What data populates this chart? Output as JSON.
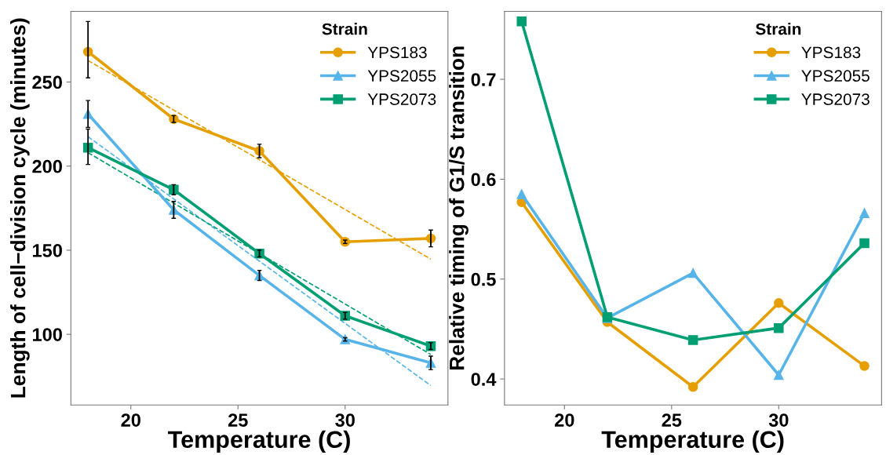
{
  "chart_data": [
    {
      "type": "line",
      "xlabel": "Temperature (C)",
      "ylabel": "Length of cell−division cycle (minutes)",
      "legend_title": "Strain",
      "legend": "top right",
      "grid": false,
      "x": [
        18,
        22,
        26,
        30,
        34
      ],
      "xlim": [
        17.2,
        34.8
      ],
      "xticks": [
        20,
        25,
        30
      ],
      "ylim": [
        58,
        292
      ],
      "yticks": [
        100,
        150,
        200,
        250
      ],
      "series": [
        {
          "name": "YPS183",
          "color": "#e69f00",
          "marker": "circle",
          "values": [
            268,
            228,
            209,
            155,
            157
          ],
          "errors": [
            [
              252.5,
              286
            ],
            2,
            4,
            1,
            5
          ]
        },
        {
          "name": "YPS2055",
          "color": "#56b4e9",
          "marker": "triangle",
          "values": [
            231,
            174,
            135,
            97,
            83
          ],
          "errors": [
            [
              223,
              239
            ],
            5,
            3,
            1,
            4
          ]
        },
        {
          "name": "YPS2073",
          "color": "#009e73",
          "marker": "square",
          "values": [
            211,
            186,
            148,
            111,
            93
          ],
          "errors": [
            [
              201,
              222
            ],
            3,
            2,
            2,
            2
          ]
        },
        {
          "type": "line",
          "color": "#e69f00",
          "line_style": "dashed",
          "marker": "none",
          "values": [
            262.8,
            233.3,
            203.8,
            174.2,
            144.7
          ]
        },
        {
          "type": "line",
          "color": "#56b4e9",
          "line_style": "dashed",
          "marker": "none",
          "values": [
            217.5,
            180.5,
            143.5,
            106.5,
            69.5
          ]
        },
        {
          "type": "line",
          "color": "#009e73",
          "line_style": "dashed",
          "marker": "none",
          "values": [
            208,
            178,
            148,
            118,
            88
          ]
        }
      ]
    },
    {
      "type": "line",
      "xlabel": "Temperature (C)",
      "ylabel": "Relative timing of G1/S transition",
      "legend_title": "Strain",
      "legend": "top right",
      "grid": false,
      "x": [
        18,
        22,
        26,
        30,
        34
      ],
      "xlim": [
        17.2,
        34.8
      ],
      "xticks": [
        20,
        25,
        30
      ],
      "ylim": [
        0.374,
        0.768
      ],
      "yticks": [
        0.4,
        0.5,
        0.6,
        0.7
      ],
      "series": [
        {
          "name": "YPS183",
          "color": "#e69f00",
          "marker": "circle",
          "values": [
            0.577,
            0.457,
            0.392,
            0.476,
            0.413
          ]
        },
        {
          "name": "YPS2055",
          "color": "#56b4e9",
          "marker": "triangle",
          "values": [
            0.585,
            0.461,
            0.506,
            0.404,
            0.566
          ]
        },
        {
          "name": "YPS2073",
          "color": "#009e73",
          "marker": "square",
          "values": [
            0.758,
            0.462,
            0.439,
            0.451,
            0.536
          ]
        }
      ]
    }
  ]
}
